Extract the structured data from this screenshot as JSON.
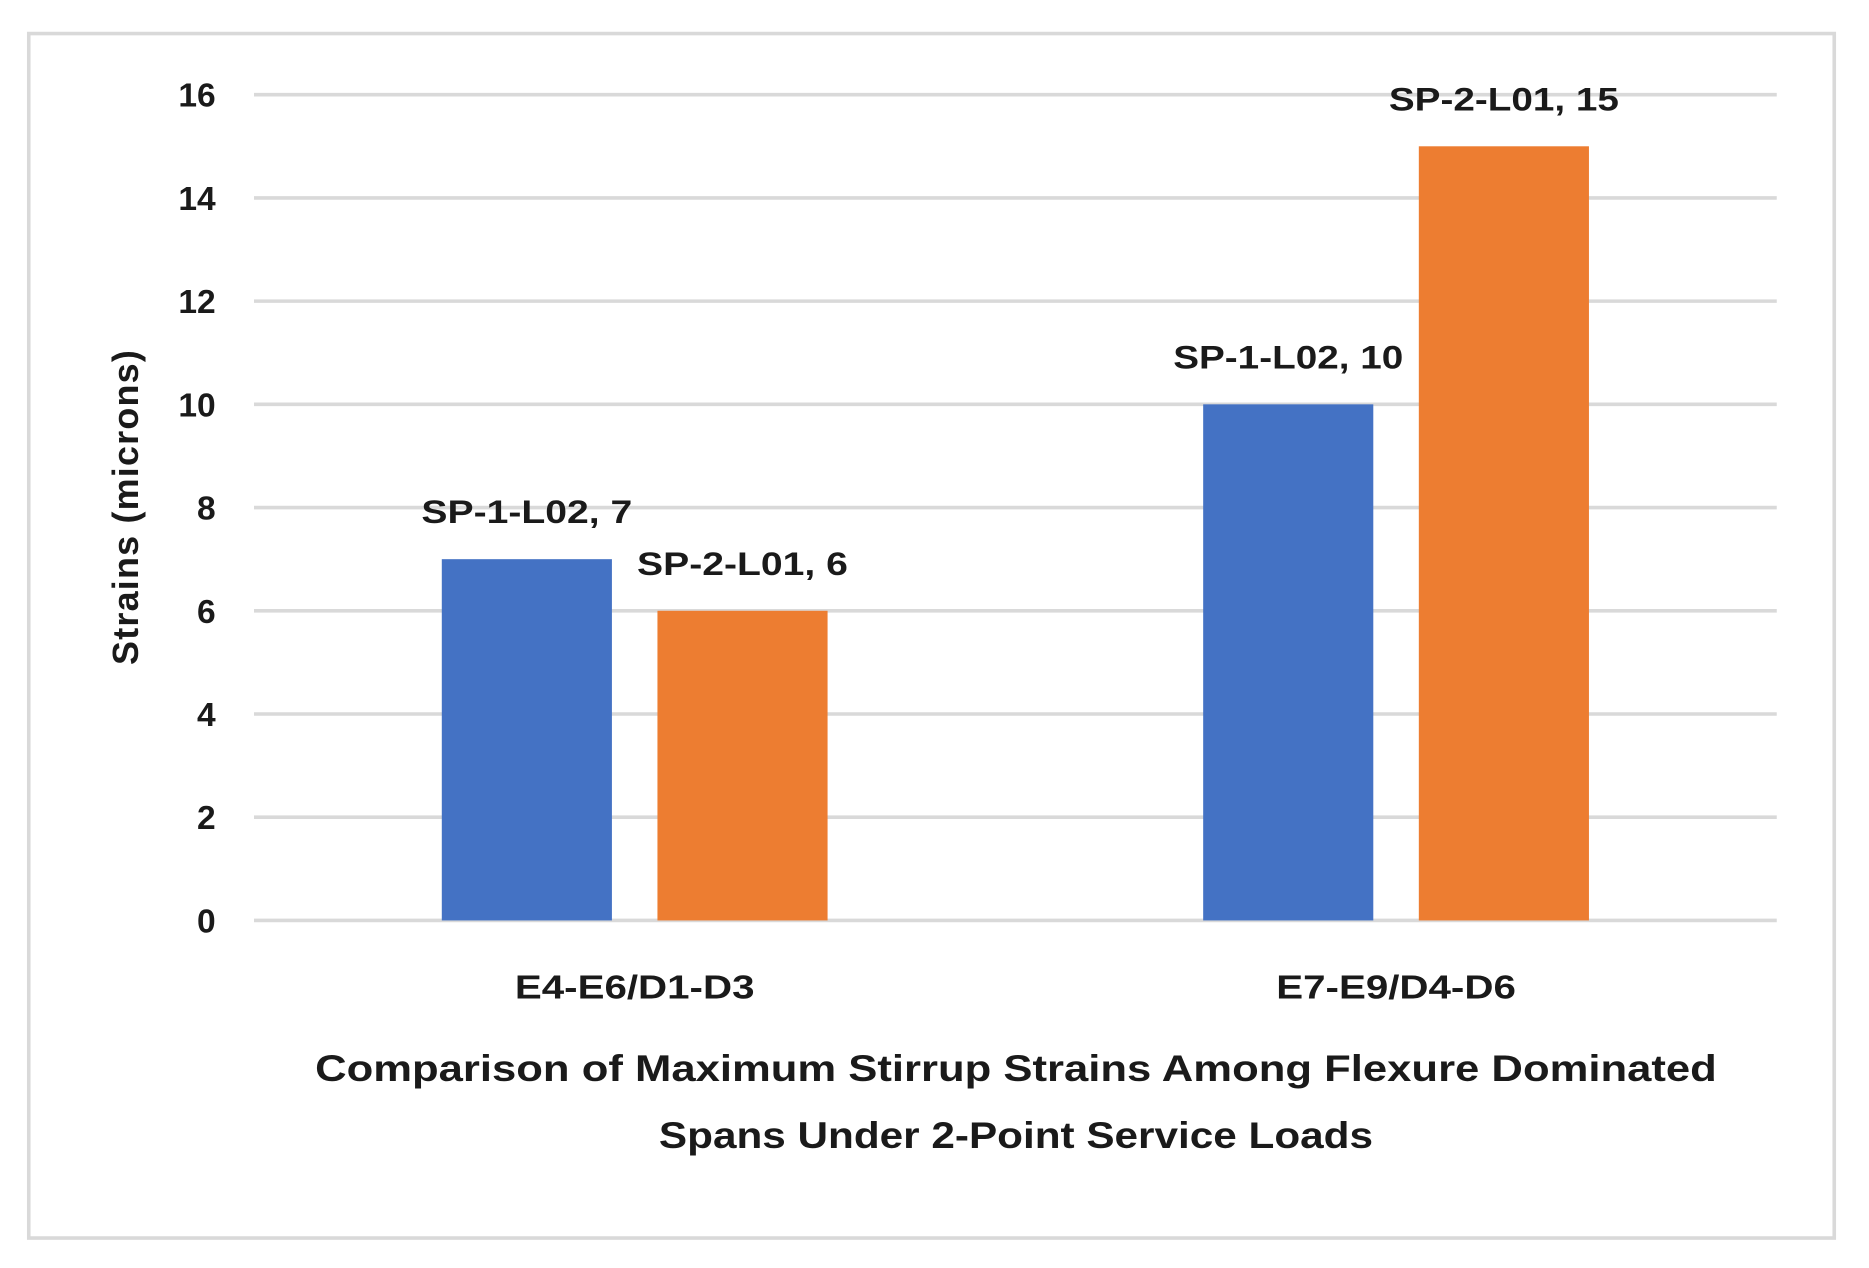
{
  "chart_data": {
    "type": "bar",
    "categories": [
      "E4-E6/D1-D3",
      "E7-E9/D4-D6"
    ],
    "series": [
      {
        "name": "SP-1-L02",
        "values": [
          7,
          10
        ],
        "color": "#4472C4"
      },
      {
        "name": "SP-2-L01",
        "values": [
          6,
          15
        ],
        "color": "#ED7D31"
      }
    ],
    "data_labels": [
      [
        "SP-1-L02, 7",
        "SP-1-L02, 10"
      ],
      [
        "SP-2-L01, 6",
        "SP-2-L01, 15"
      ]
    ],
    "title": "",
    "xlabel_lines": [
      "Comparison  of Maximum Stirrup Strains Among Flexure Dominated",
      "Spans Under 2-Point Service Loads"
    ],
    "ylabel": "Strains (microns)",
    "ylim": [
      0,
      16
    ],
    "yticks": [
      "0",
      "2",
      "4",
      "6",
      "8",
      "10",
      "12",
      "14",
      "16"
    ],
    "grid": true,
    "legend": "none",
    "gridline_color": "#D9D9D9"
  }
}
